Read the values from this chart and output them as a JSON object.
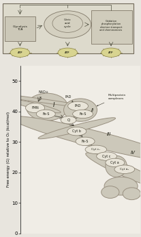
{
  "fig_bg": "#e8e5de",
  "plot_bg": "#f0ede6",
  "y_label": "Free energy (G) relative to O₂ (kcal/mol)",
  "y_ticks": [
    0,
    10,
    20,
    30,
    40,
    50
  ],
  "blob_color": "#ccc8ba",
  "blob_edge": "#999080",
  "ellipse_fill": "#e8e4d8",
  "ellipse_edge": "#807868",
  "arrow_color": "#333025",
  "text_color": "#1a1a10",
  "top_outer_bg": "#dddacc",
  "top_inner_bg": "#ccc8b8",
  "top_circle_bg": "#d4d0c0",
  "top_right_bg": "#d0ccbc",
  "atp_color": "#d8d490",
  "atp_edge": "#888040"
}
